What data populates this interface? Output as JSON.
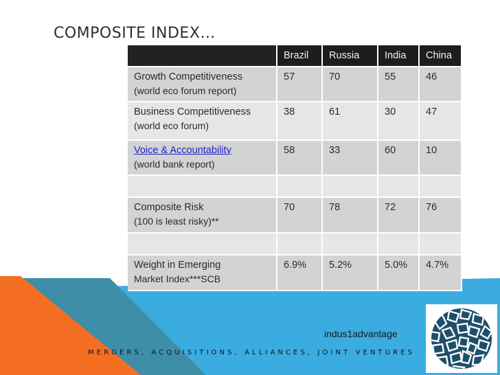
{
  "slide": {
    "title": "COMPOSITE INDEX…",
    "brand": "indus1advantage",
    "footer": "MERGERS, ACQUISITIONS, ALLIANCES, JOINT VENTURES",
    "logo_icon": "mosaic-globe-logo-icon"
  },
  "colors": {
    "band_blue": "#3aace0",
    "band_teal": "#3e8ea8",
    "band_orange": "#f46e22",
    "header_bg": "#1d1d1d",
    "link_blue": "#1f1fbf",
    "logo_navy": "#1d4f6b"
  },
  "table": {
    "header": [
      "",
      "Brazil",
      "Russia",
      "India",
      "China"
    ],
    "rows": [
      {
        "label": "Growth Competitiveness",
        "sub": "(world eco forum report)",
        "values": [
          "57",
          "70",
          "55",
          "46"
        ]
      },
      {
        "label": "Business Competitiveness",
        "sub": "(world eco forum)",
        "values": [
          "38",
          "61",
          "30",
          "47"
        ]
      },
      {
        "label_link": "Voice & Accountability",
        "sub_prefix": "(",
        "sub": "world bank report)",
        "values": [
          "58",
          "33",
          "60",
          "10"
        ]
      },
      {
        "label": "",
        "sub": "",
        "values": [
          "",
          "",
          "",
          ""
        ]
      },
      {
        "label": "Composite Risk",
        "sub": "(100 is least risky)**",
        "values": [
          "70",
          "78",
          "72",
          "76"
        ]
      },
      {
        "label": "",
        "sub": "",
        "values": [
          "",
          "",
          "",
          ""
        ]
      },
      {
        "label": "Weight in Emerging",
        "sub": "Market Index***SCB",
        "values": [
          "6.9%",
          "5.2%",
          "5.0%",
          "4.7%"
        ]
      }
    ]
  }
}
